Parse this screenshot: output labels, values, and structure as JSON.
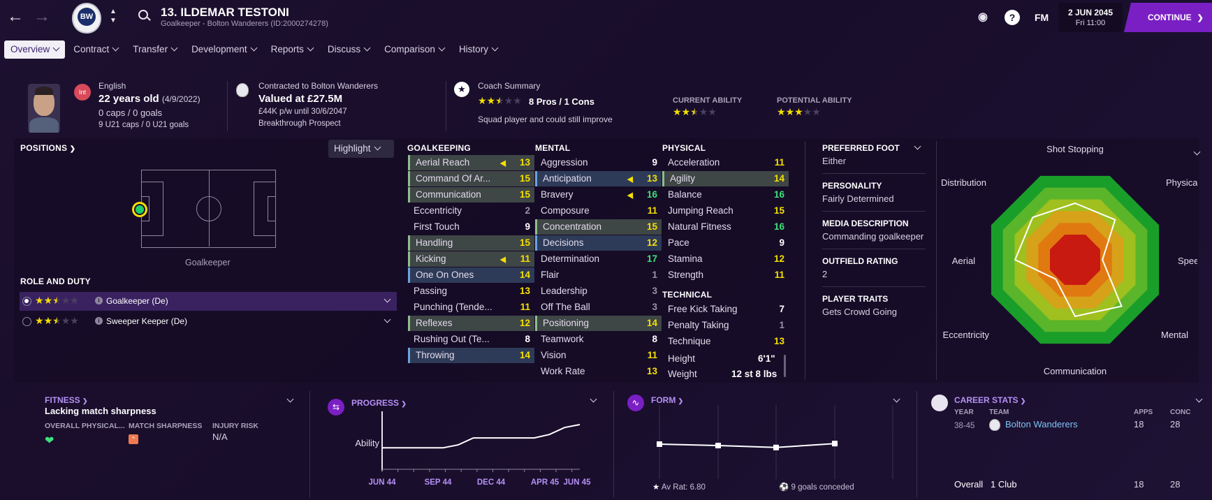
{
  "header": {
    "player_title": "13. ILDEMAR TESTONI",
    "subtitle": "Goalkeeper - Bolton Wanderers (ID:2000274278)",
    "club_crest_text": "BW",
    "fm_label": "FM",
    "help_label": "?",
    "date": "2 JUN 2045",
    "time": "Fri 11:00",
    "continue_label": "CONTINUE"
  },
  "tabs": [
    "Overview",
    "Contract",
    "Transfer",
    "Development",
    "Reports",
    "Discuss",
    "Comparison",
    "History"
  ],
  "profile": {
    "nationality": "English",
    "int_badge": "Int",
    "age": "22 years old",
    "dob": "(4/9/2022)",
    "caps": "0 caps / 0 goals",
    "u21": "9 U21 caps / 0 U21 goals",
    "contract_to": "Contracted to Bolton Wanderers",
    "value": "Valued at £27.5M",
    "wage": "£44K p/w until 30/6/2047",
    "prospect": "Breakthrough Prospect",
    "coach_summary_label": "Coach Summary",
    "coach_rating": 2.5,
    "pros_cons": "8 Pros / 1 Cons",
    "squad_note": "Squad player and could still improve",
    "current_ability_label": "CURRENT ABILITY",
    "current_ability_stars": 2.5,
    "potential_ability_label": "POTENTIAL ABILITY",
    "potential_ability_stars": 3
  },
  "positions": {
    "label": "POSITIONS",
    "highlight_label": "Highlight",
    "position_name": "Goalkeeper",
    "role_duty_label": "ROLE AND DUTY",
    "roles": [
      {
        "name": "Goalkeeper (De)",
        "stars": 2.5,
        "selected": true
      },
      {
        "name": "Sweeper Keeper (De)",
        "stars": 2.5,
        "selected": false
      }
    ]
  },
  "attributes": {
    "goalkeeping_label": "GOALKEEPING",
    "mental_label": "MENTAL",
    "physical_label": "PHYSICAL",
    "technical_label": "TECHNICAL",
    "goalkeeping": [
      {
        "name": "Aerial Reach",
        "value": "13",
        "hl": "g",
        "arrow": true
      },
      {
        "name": "Command Of Ar...",
        "value": "15",
        "hl": "g"
      },
      {
        "name": "Communication",
        "value": "15",
        "hl": "g"
      },
      {
        "name": "Eccentricity",
        "value": "2",
        "hl": ""
      },
      {
        "name": "First Touch",
        "value": "9",
        "hl": ""
      },
      {
        "name": "Handling",
        "value": "15",
        "hl": "g"
      },
      {
        "name": "Kicking",
        "value": "11",
        "hl": "g",
        "arrow": true
      },
      {
        "name": "One On Ones",
        "value": "14",
        "hl": "b"
      },
      {
        "name": "Passing",
        "value": "13",
        "hl": ""
      },
      {
        "name": "Punching (Tende...",
        "value": "11",
        "hl": ""
      },
      {
        "name": "Reflexes",
        "value": "12",
        "hl": "g"
      },
      {
        "name": "Rushing Out (Te...",
        "value": "8",
        "hl": ""
      },
      {
        "name": "Throwing",
        "value": "14",
        "hl": "b"
      }
    ],
    "mental": [
      {
        "name": "Aggression",
        "value": "9",
        "hl": ""
      },
      {
        "name": "Anticipation",
        "value": "13",
        "hl": "b",
        "arrow": true
      },
      {
        "name": "Bravery",
        "value": "16",
        "hl": "",
        "arrow": true
      },
      {
        "name": "Composure",
        "value": "11",
        "hl": ""
      },
      {
        "name": "Concentration",
        "value": "15",
        "hl": "g"
      },
      {
        "name": "Decisions",
        "value": "12",
        "hl": "b"
      },
      {
        "name": "Determination",
        "value": "17",
        "hl": ""
      },
      {
        "name": "Flair",
        "value": "1",
        "hl": ""
      },
      {
        "name": "Leadership",
        "value": "3",
        "hl": ""
      },
      {
        "name": "Off The Ball",
        "value": "3",
        "hl": ""
      },
      {
        "name": "Positioning",
        "value": "14",
        "hl": "g"
      },
      {
        "name": "Teamwork",
        "value": "8",
        "hl": ""
      },
      {
        "name": "Vision",
        "value": "11",
        "hl": ""
      },
      {
        "name": "Work Rate",
        "value": "13",
        "hl": ""
      }
    ],
    "physical": [
      {
        "name": "Acceleration",
        "value": "11",
        "hl": ""
      },
      {
        "name": "Agility",
        "value": "14",
        "hl": "g"
      },
      {
        "name": "Balance",
        "value": "16",
        "hl": ""
      },
      {
        "name": "Jumping Reach",
        "value": "15",
        "hl": ""
      },
      {
        "name": "Natural Fitness",
        "value": "16",
        "hl": ""
      },
      {
        "name": "Pace",
        "value": "9",
        "hl": ""
      },
      {
        "name": "Stamina",
        "value": "12",
        "hl": ""
      },
      {
        "name": "Strength",
        "value": "11",
        "hl": ""
      }
    ],
    "technical": [
      {
        "name": "Free Kick Taking",
        "value": "7",
        "hl": ""
      },
      {
        "name": "Penalty Taking",
        "value": "1",
        "hl": ""
      },
      {
        "name": "Technique",
        "value": "13",
        "hl": ""
      }
    ],
    "height_label": "Height",
    "height": "6'1\"",
    "weight_label": "Weight",
    "weight": "12 st 8 lbs"
  },
  "info": {
    "preferred_foot_label": "PREFERRED FOOT",
    "preferred_foot": "Either",
    "personality_label": "PERSONALITY",
    "personality": "Fairly Determined",
    "media_label": "MEDIA DESCRIPTION",
    "media": "Commanding goalkeeper",
    "outfield_label": "OUTFIELD RATING",
    "outfield": "2",
    "traits_label": "PLAYER TRAITS",
    "traits": "Gets Crowd Going"
  },
  "radar": {
    "axes": [
      "Shot Stopping",
      "Physical",
      "Speed",
      "Mental",
      "Communication",
      "Eccentricity",
      "Aerial",
      "Distribution"
    ],
    "values": [
      0.56,
      0.56,
      0.05,
      0.72,
      0.56,
      0.05,
      0.62,
      0.62
    ]
  },
  "fitness": {
    "title": "FITNESS",
    "status": "Lacking match sharpness",
    "overall_label": "OVERALL PHYSICAL...",
    "sharpness_label": "MATCH SHARPNESS",
    "injury_label": "INJURY RISK",
    "injury_value": "N/A"
  },
  "progress": {
    "title": "PROGRESS",
    "ylabel": "Ability",
    "ticks": [
      "JUN 44",
      "SEP 44",
      "DEC 44",
      "APR 45",
      "JUN 45"
    ]
  },
  "chart_data": {
    "type": "line",
    "title": "PROGRESS",
    "ylabel": "Ability",
    "x": [
      "JUN 44",
      "SEP 44",
      "DEC 44",
      "APR 45",
      "JUN 45"
    ],
    "series": [
      {
        "values_by_step": [
          0.25,
          0.25,
          0.25,
          0.25,
          0.25,
          0.3,
          0.42,
          0.42,
          0.42,
          0.42,
          0.42,
          0.48,
          0.6,
          0.65
        ]
      }
    ]
  },
  "form": {
    "title": "FORM",
    "points": [
      6.9,
      6.85,
      6.78,
      6.92
    ],
    "av_rat": "Av Rat: 6.80",
    "goals_conceded": "9 goals conceded"
  },
  "career": {
    "title": "CAREER STATS",
    "col_year": "YEAR",
    "col_team": "TEAM",
    "col_apps": "APPS",
    "col_conc": "CONC",
    "row_year": "38-45",
    "row_team": "Bolton Wanderers",
    "row_apps": "18",
    "row_conc": "28",
    "overall_label": "Overall",
    "overall_clubs": "1 Club",
    "overall_apps": "18",
    "overall_conc": "28"
  },
  "colors": {
    "accent": "#7a1fc4",
    "attr_yellow": "#f4e000",
    "attr_green": "#3ee27a"
  }
}
